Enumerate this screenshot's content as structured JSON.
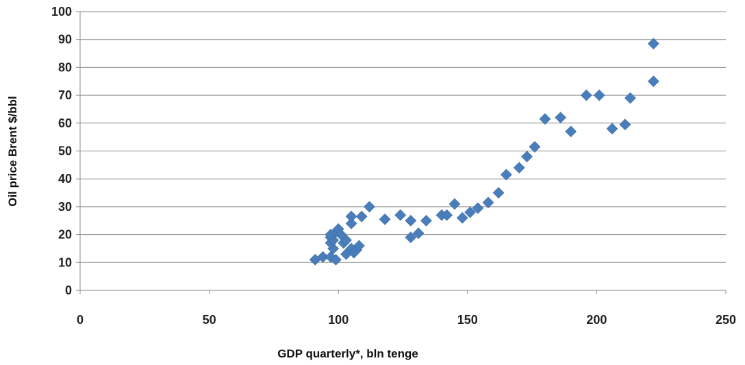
{
  "chart_data": {
    "type": "scatter",
    "title": "",
    "xlabel": "GDP quarterly*, bln tenge",
    "ylabel": "Oil price Brent $/bbl",
    "xlim": [
      0,
      250
    ],
    "ylim": [
      0,
      100
    ],
    "xticks": [
      0,
      50,
      100,
      150,
      200,
      250
    ],
    "yticks": [
      0,
      10,
      20,
      30,
      40,
      50,
      60,
      70,
      80,
      90,
      100
    ],
    "grid": {
      "horizontal": true,
      "vertical": false
    },
    "legend": "none",
    "marker": {
      "shape": "diamond",
      "color": "#4a7ebb"
    },
    "series": [
      {
        "points": [
          [
            91,
            11
          ],
          [
            94,
            12
          ],
          [
            97,
            12
          ],
          [
            98,
            15
          ],
          [
            97,
            17
          ],
          [
            98,
            18
          ],
          [
            97,
            19
          ],
          [
            97,
            20
          ],
          [
            99,
            11
          ],
          [
            99,
            21
          ],
          [
            100,
            22
          ],
          [
            101,
            20
          ],
          [
            102,
            17
          ],
          [
            103,
            13
          ],
          [
            103,
            18
          ],
          [
            105,
            15
          ],
          [
            105,
            24
          ],
          [
            105,
            26.5
          ],
          [
            106,
            13.5
          ],
          [
            107,
            14.5
          ],
          [
            108,
            16
          ],
          [
            109,
            26.5
          ],
          [
            112,
            30
          ],
          [
            118,
            25.5
          ],
          [
            124,
            27
          ],
          [
            128,
            25
          ],
          [
            128,
            19
          ],
          [
            131,
            20.5
          ],
          [
            134,
            25
          ],
          [
            140,
            27
          ],
          [
            142,
            27
          ],
          [
            145,
            31
          ],
          [
            148,
            26
          ],
          [
            151,
            28
          ],
          [
            154,
            29.5
          ],
          [
            158,
            31.5
          ],
          [
            162,
            35
          ],
          [
            165,
            41.5
          ],
          [
            170,
            44
          ],
          [
            173,
            48
          ],
          [
            176,
            51.5
          ],
          [
            180,
            61.5
          ],
          [
            186,
            62
          ],
          [
            190,
            57
          ],
          [
            196,
            70
          ],
          [
            201,
            70
          ],
          [
            206,
            58
          ],
          [
            211,
            59.5
          ],
          [
            213,
            69
          ],
          [
            222,
            75
          ],
          [
            222,
            88.5
          ]
        ]
      }
    ]
  }
}
